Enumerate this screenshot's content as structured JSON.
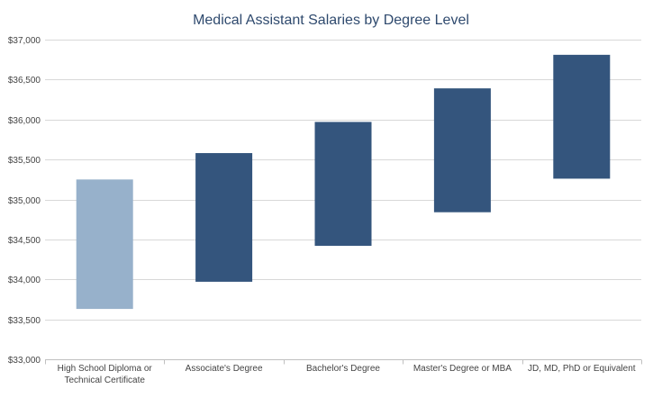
{
  "chart_data": {
    "type": "bar",
    "title": "Medical Assistant Salaries by Degree Level",
    "xlabel": "",
    "ylabel": "",
    "ylim": [
      33000,
      37000
    ],
    "y_ticks": [
      "$33,000",
      "$33,500",
      "$34,000",
      "$34,500",
      "$35,000",
      "$35,500",
      "$36,000",
      "$36,500",
      "$37,000"
    ],
    "y_tick_values": [
      33000,
      33500,
      34000,
      34500,
      35000,
      35500,
      36000,
      36500,
      37000
    ],
    "grid": true,
    "categories": [
      [
        "High School Diploma or",
        "Technical Certificate"
      ],
      [
        "Associate's Degree"
      ],
      [
        "Bachelor's Degree"
      ],
      [
        "Master's Degree or MBA"
      ],
      [
        "JD, MD, PhD or Equivalent"
      ]
    ],
    "ranges": [
      {
        "low": 33630,
        "high": 35250
      },
      {
        "low": 33970,
        "high": 35580
      },
      {
        "low": 34420,
        "high": 35970
      },
      {
        "low": 34840,
        "high": 36390
      },
      {
        "low": 35260,
        "high": 36810
      }
    ],
    "colors": [
      "#97b1cb",
      "#34557d",
      "#34557d",
      "#34557d",
      "#34557d"
    ]
  }
}
